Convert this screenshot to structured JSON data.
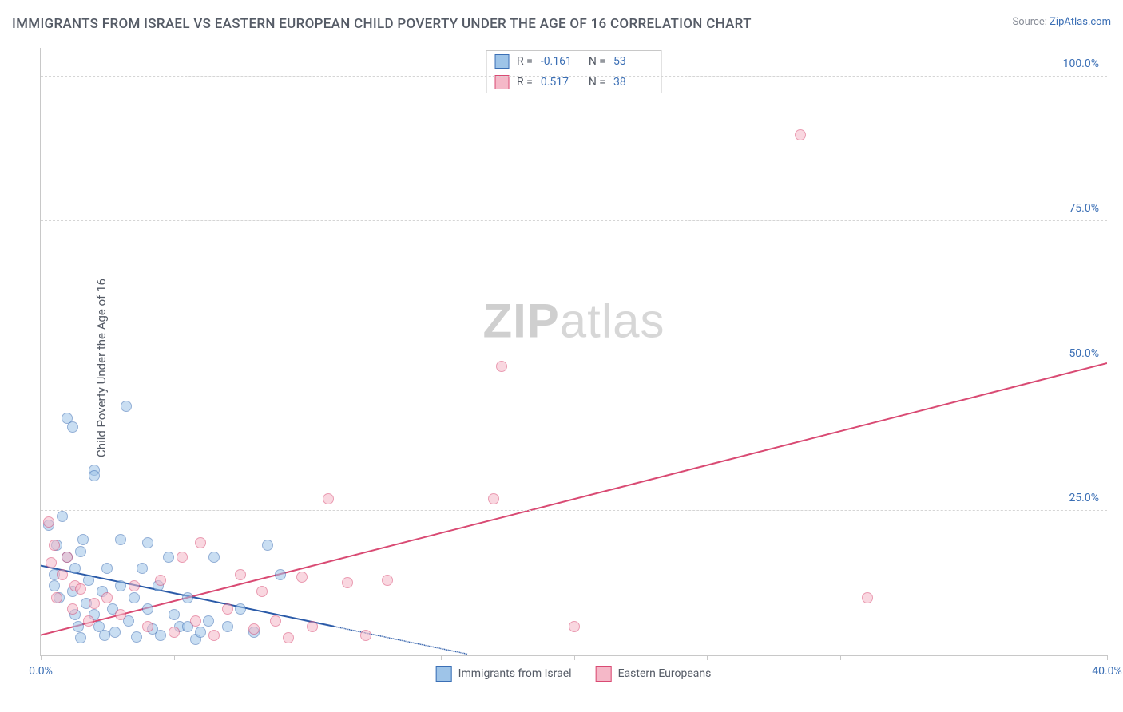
{
  "title": "IMMIGRANTS FROM ISRAEL VS EASTERN EUROPEAN CHILD POVERTY UNDER THE AGE OF 16 CORRELATION CHART",
  "source_prefix": "Source: ",
  "source_link": "ZipAtlas.com",
  "ylabel": "Child Poverty Under the Age of 16",
  "watermark_bold": "ZIP",
  "watermark_rest": "atlas",
  "chart": {
    "background_color": "#ffffff",
    "grid_color": "#d5d5d5",
    "axis_color": "#c8c8c8",
    "label_color": "#555b66",
    "value_color": "#3b6fb5",
    "xlim": [
      0,
      40
    ],
    "ylim": [
      0,
      105
    ],
    "y_ticks": [
      25,
      50,
      75,
      100
    ],
    "y_tick_labels": [
      "25.0%",
      "50.0%",
      "75.0%",
      "100.0%"
    ],
    "x_ticks": [
      0,
      5,
      10,
      15,
      20,
      25,
      30,
      35,
      40
    ],
    "x_tick_labels_shown": {
      "0": "0.0%",
      "40": "40.0%"
    },
    "point_radius": 7,
    "point_opacity": 0.55,
    "series": [
      {
        "name": "Immigrants from Israel",
        "fill": "#9ec4e8",
        "stroke": "#3b6fb5",
        "trend_color": "#2a5aa8",
        "trend_dash_color": "#2a5aa8",
        "trend": {
          "x1": 0,
          "y1": 15.5,
          "x2": 11,
          "y2": 5.0,
          "dash_to_x": 16
        },
        "points": [
          [
            0.3,
            22.5
          ],
          [
            0.5,
            14
          ],
          [
            0.5,
            12
          ],
          [
            0.6,
            19
          ],
          [
            0.7,
            10
          ],
          [
            0.8,
            24
          ],
          [
            1.0,
            41
          ],
          [
            1.0,
            17
          ],
          [
            1.2,
            39.5
          ],
          [
            1.2,
            11
          ],
          [
            1.3,
            7
          ],
          [
            1.3,
            15
          ],
          [
            1.4,
            5
          ],
          [
            1.5,
            18
          ],
          [
            1.5,
            3
          ],
          [
            1.6,
            20
          ],
          [
            1.7,
            9
          ],
          [
            1.8,
            13
          ],
          [
            2.0,
            32
          ],
          [
            2.0,
            31
          ],
          [
            2.0,
            7
          ],
          [
            2.2,
            5
          ],
          [
            2.3,
            11
          ],
          [
            2.4,
            3.5
          ],
          [
            2.5,
            15
          ],
          [
            2.7,
            8
          ],
          [
            2.8,
            4
          ],
          [
            3.0,
            20
          ],
          [
            3.0,
            12
          ],
          [
            3.2,
            43
          ],
          [
            3.3,
            6
          ],
          [
            3.5,
            10
          ],
          [
            3.6,
            3.2
          ],
          [
            3.8,
            15
          ],
          [
            4.0,
            19.5
          ],
          [
            4.0,
            8
          ],
          [
            4.2,
            4.5
          ],
          [
            4.4,
            12
          ],
          [
            4.5,
            3.5
          ],
          [
            4.8,
            17
          ],
          [
            5.0,
            7
          ],
          [
            5.2,
            5
          ],
          [
            5.5,
            5
          ],
          [
            5.5,
            10
          ],
          [
            5.8,
            2.8
          ],
          [
            6.0,
            4
          ],
          [
            6.3,
            6
          ],
          [
            6.5,
            17
          ],
          [
            7.0,
            5
          ],
          [
            7.5,
            8
          ],
          [
            8.0,
            4
          ],
          [
            8.5,
            19
          ],
          [
            9.0,
            14
          ]
        ]
      },
      {
        "name": "Eastern Europeans",
        "fill": "#f5b8c8",
        "stroke": "#d94a73",
        "trend_color": "#d94a73",
        "trend": {
          "x1": 0,
          "y1": 3.5,
          "x2": 40,
          "y2": 50.5
        },
        "points": [
          [
            0.3,
            23
          ],
          [
            0.4,
            16
          ],
          [
            0.5,
            19
          ],
          [
            0.6,
            10
          ],
          [
            0.8,
            14
          ],
          [
            1.0,
            17
          ],
          [
            1.2,
            8
          ],
          [
            1.3,
            12
          ],
          [
            1.5,
            11.5
          ],
          [
            1.8,
            6
          ],
          [
            2.0,
            9
          ],
          [
            2.5,
            10
          ],
          [
            3.0,
            7
          ],
          [
            3.5,
            12
          ],
          [
            4.0,
            5
          ],
          [
            4.5,
            13
          ],
          [
            5.0,
            4
          ],
          [
            5.3,
            17
          ],
          [
            5.8,
            6
          ],
          [
            6.0,
            19.5
          ],
          [
            6.5,
            3.5
          ],
          [
            7.0,
            8
          ],
          [
            7.5,
            14
          ],
          [
            8.0,
            4.5
          ],
          [
            8.3,
            11
          ],
          [
            8.8,
            6
          ],
          [
            9.3,
            3
          ],
          [
            9.8,
            13.5
          ],
          [
            10.2,
            5
          ],
          [
            10.8,
            27
          ],
          [
            11.5,
            12.5
          ],
          [
            12.2,
            3.5
          ],
          [
            13,
            13
          ],
          [
            17,
            27
          ],
          [
            17.3,
            50
          ],
          [
            20,
            5
          ],
          [
            28.5,
            90
          ],
          [
            31,
            10
          ]
        ]
      }
    ]
  },
  "stats": [
    {
      "r_label": "R =",
      "r_value": "-0.161",
      "n_label": "N =",
      "n_value": "53",
      "fill": "#9ec4e8",
      "stroke": "#3b6fb5"
    },
    {
      "r_label": "R =",
      "r_value": "0.517",
      "n_label": "N =",
      "n_value": "38",
      "fill": "#f5b8c8",
      "stroke": "#d94a73"
    }
  ],
  "legend": [
    {
      "label": "Immigrants from Israel",
      "fill": "#9ec4e8",
      "stroke": "#3b6fb5"
    },
    {
      "label": "Eastern Europeans",
      "fill": "#f5b8c8",
      "stroke": "#d94a73"
    }
  ]
}
